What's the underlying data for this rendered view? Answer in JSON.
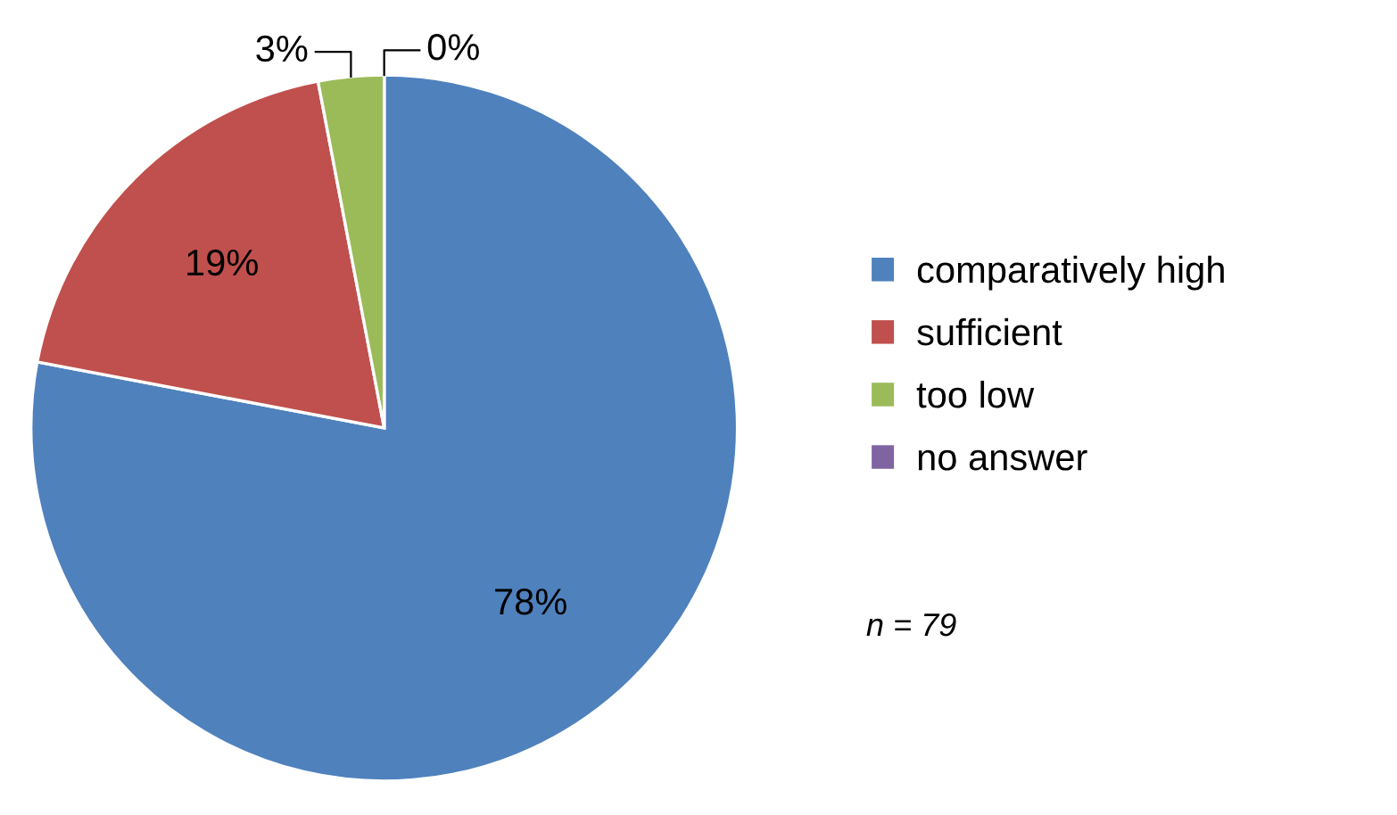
{
  "chart_data": {
    "type": "pie",
    "categories": [
      "comparatively high",
      "sufficient",
      "too low",
      "no answer"
    ],
    "values": [
      78,
      19,
      3,
      0
    ],
    "colors": [
      "#4f81bd",
      "#c0504d",
      "#9bbb59",
      "#8064a2"
    ],
    "value_labels": [
      "78%",
      "19%",
      "3%",
      "0%"
    ],
    "legend": "right",
    "annotations": [
      "n = 79"
    ]
  }
}
